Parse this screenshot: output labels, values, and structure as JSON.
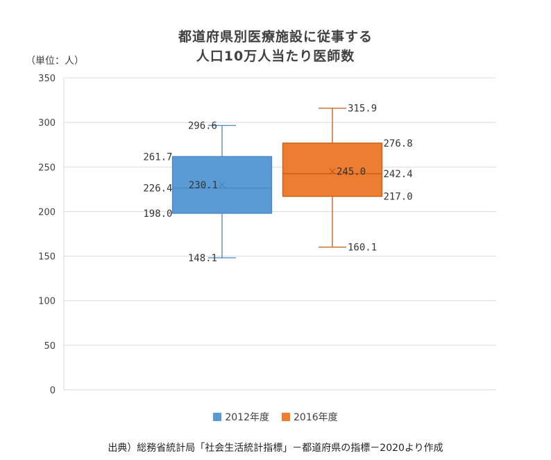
{
  "chart_data": {
    "type": "boxplot",
    "title_line1": "都道府県別医療施設に従事する",
    "title_line2": "人口10万人当たり医師数",
    "unit_label": "（単位：人）",
    "ylim": [
      0,
      350
    ],
    "yticks": [
      0,
      50,
      100,
      150,
      200,
      250,
      300,
      350
    ],
    "grid": true,
    "legend_position": "bottom",
    "series": [
      {
        "name": "2012年度",
        "color": "#5b9bd5",
        "edge": "#4a86c0",
        "min": 148.1,
        "q1": 198.0,
        "median": 226.4,
        "mean": 230.1,
        "q3": 261.7,
        "max": 296.6,
        "labels": {
          "min": "148.1",
          "q1": "198.0",
          "median": "226.4",
          "mean": "230.1",
          "q3": "261.7",
          "max": "296.6"
        }
      },
      {
        "name": "2016年度",
        "color": "#ed7d31",
        "edge": "#c55a11",
        "min": 160.1,
        "q1": 217.0,
        "median": 242.4,
        "mean": 245.0,
        "q3": 276.8,
        "max": 315.9,
        "labels": {
          "min": "160.1",
          "q1": "217.0",
          "median": "242.4",
          "mean": "245.0",
          "q3": "276.8",
          "max": "315.9"
        }
      }
    ]
  },
  "source": "出典）総務省統計局「社会生活統計指標」－都道府県の指標－2020より作成"
}
